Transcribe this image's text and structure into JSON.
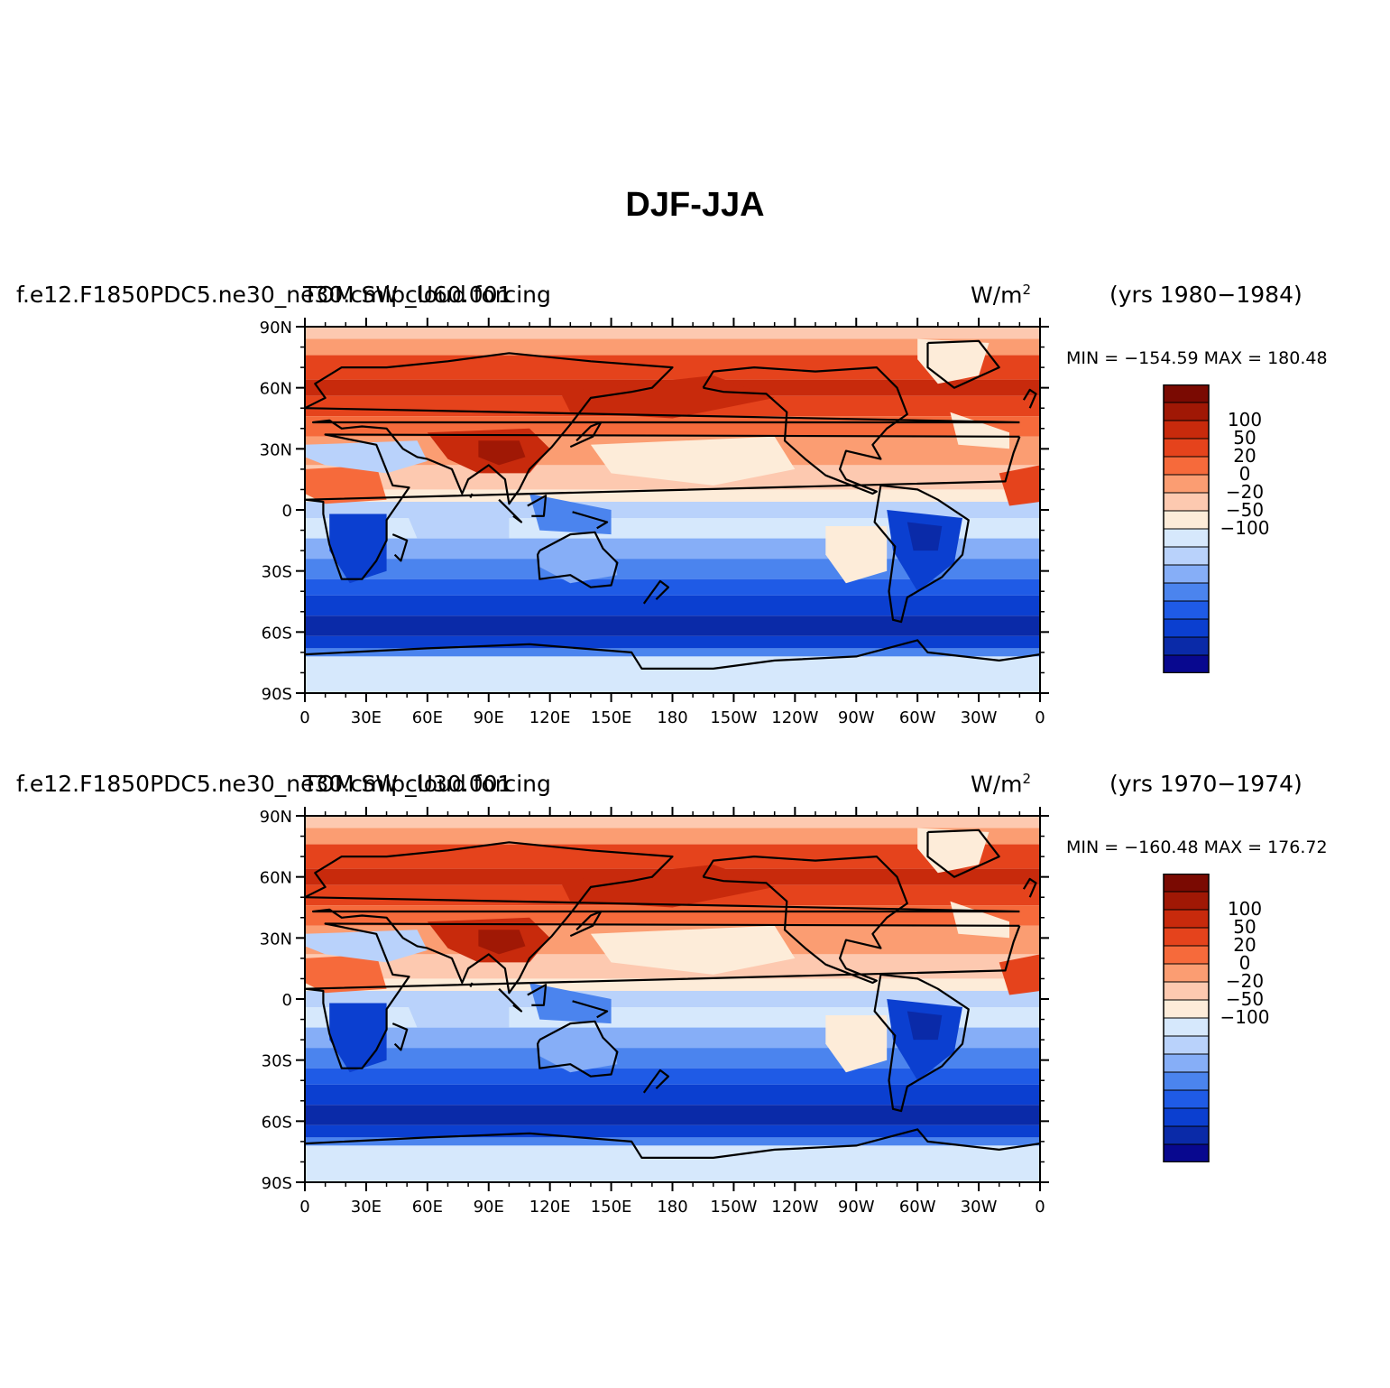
{
  "title": "DJF-JJA",
  "colors": [
    "#08088f",
    "#0a2aa8",
    "#0b3fd0",
    "#1f5be6",
    "#4b84ee",
    "#86aef7",
    "#b9d2fb",
    "#d6e8fc",
    "#fdecd9",
    "#fdc9b0",
    "#fb9d72",
    "#f66a3b",
    "#e5431c",
    "#c82a0c",
    "#a01805",
    "#7a0a02"
  ],
  "land_color": "#000000",
  "panels": [
    {
      "case": "f.e12.F1850PDC5.ne30_ne30.cmip_U60.001",
      "variable": "TOM SW cloud forcing",
      "units_base": "W/m",
      "units_sup": "2",
      "years": "(yrs 1980−1984)",
      "min_label": "MIN",
      "max_label": "MAX",
      "min": "−154.59",
      "max": "180.48"
    },
    {
      "case": "f.e12.F1850PDC5.ne30_ne30.cmip_U30.001",
      "variable": "TOM SW cloud forcing",
      "units_base": "W/m",
      "units_sup": "2",
      "years": "(yrs 1970−1974)",
      "min_label": "MIN",
      "max_label": "MAX",
      "min": "−160.48",
      "max": "176.72"
    }
  ],
  "x_ticks": [
    "0",
    "30E",
    "60E",
    "90E",
    "120E",
    "150E",
    "180",
    "150W",
    "120W",
    "90W",
    "60W",
    "30W",
    "0"
  ],
  "y_ticks": [
    "90N",
    "60N",
    "30N",
    "0",
    "30S",
    "60S",
    "90S"
  ],
  "colorbar_labels": [
    "100",
    "50",
    "20",
    "0",
    "−20",
    "−50",
    "−100"
  ]
}
